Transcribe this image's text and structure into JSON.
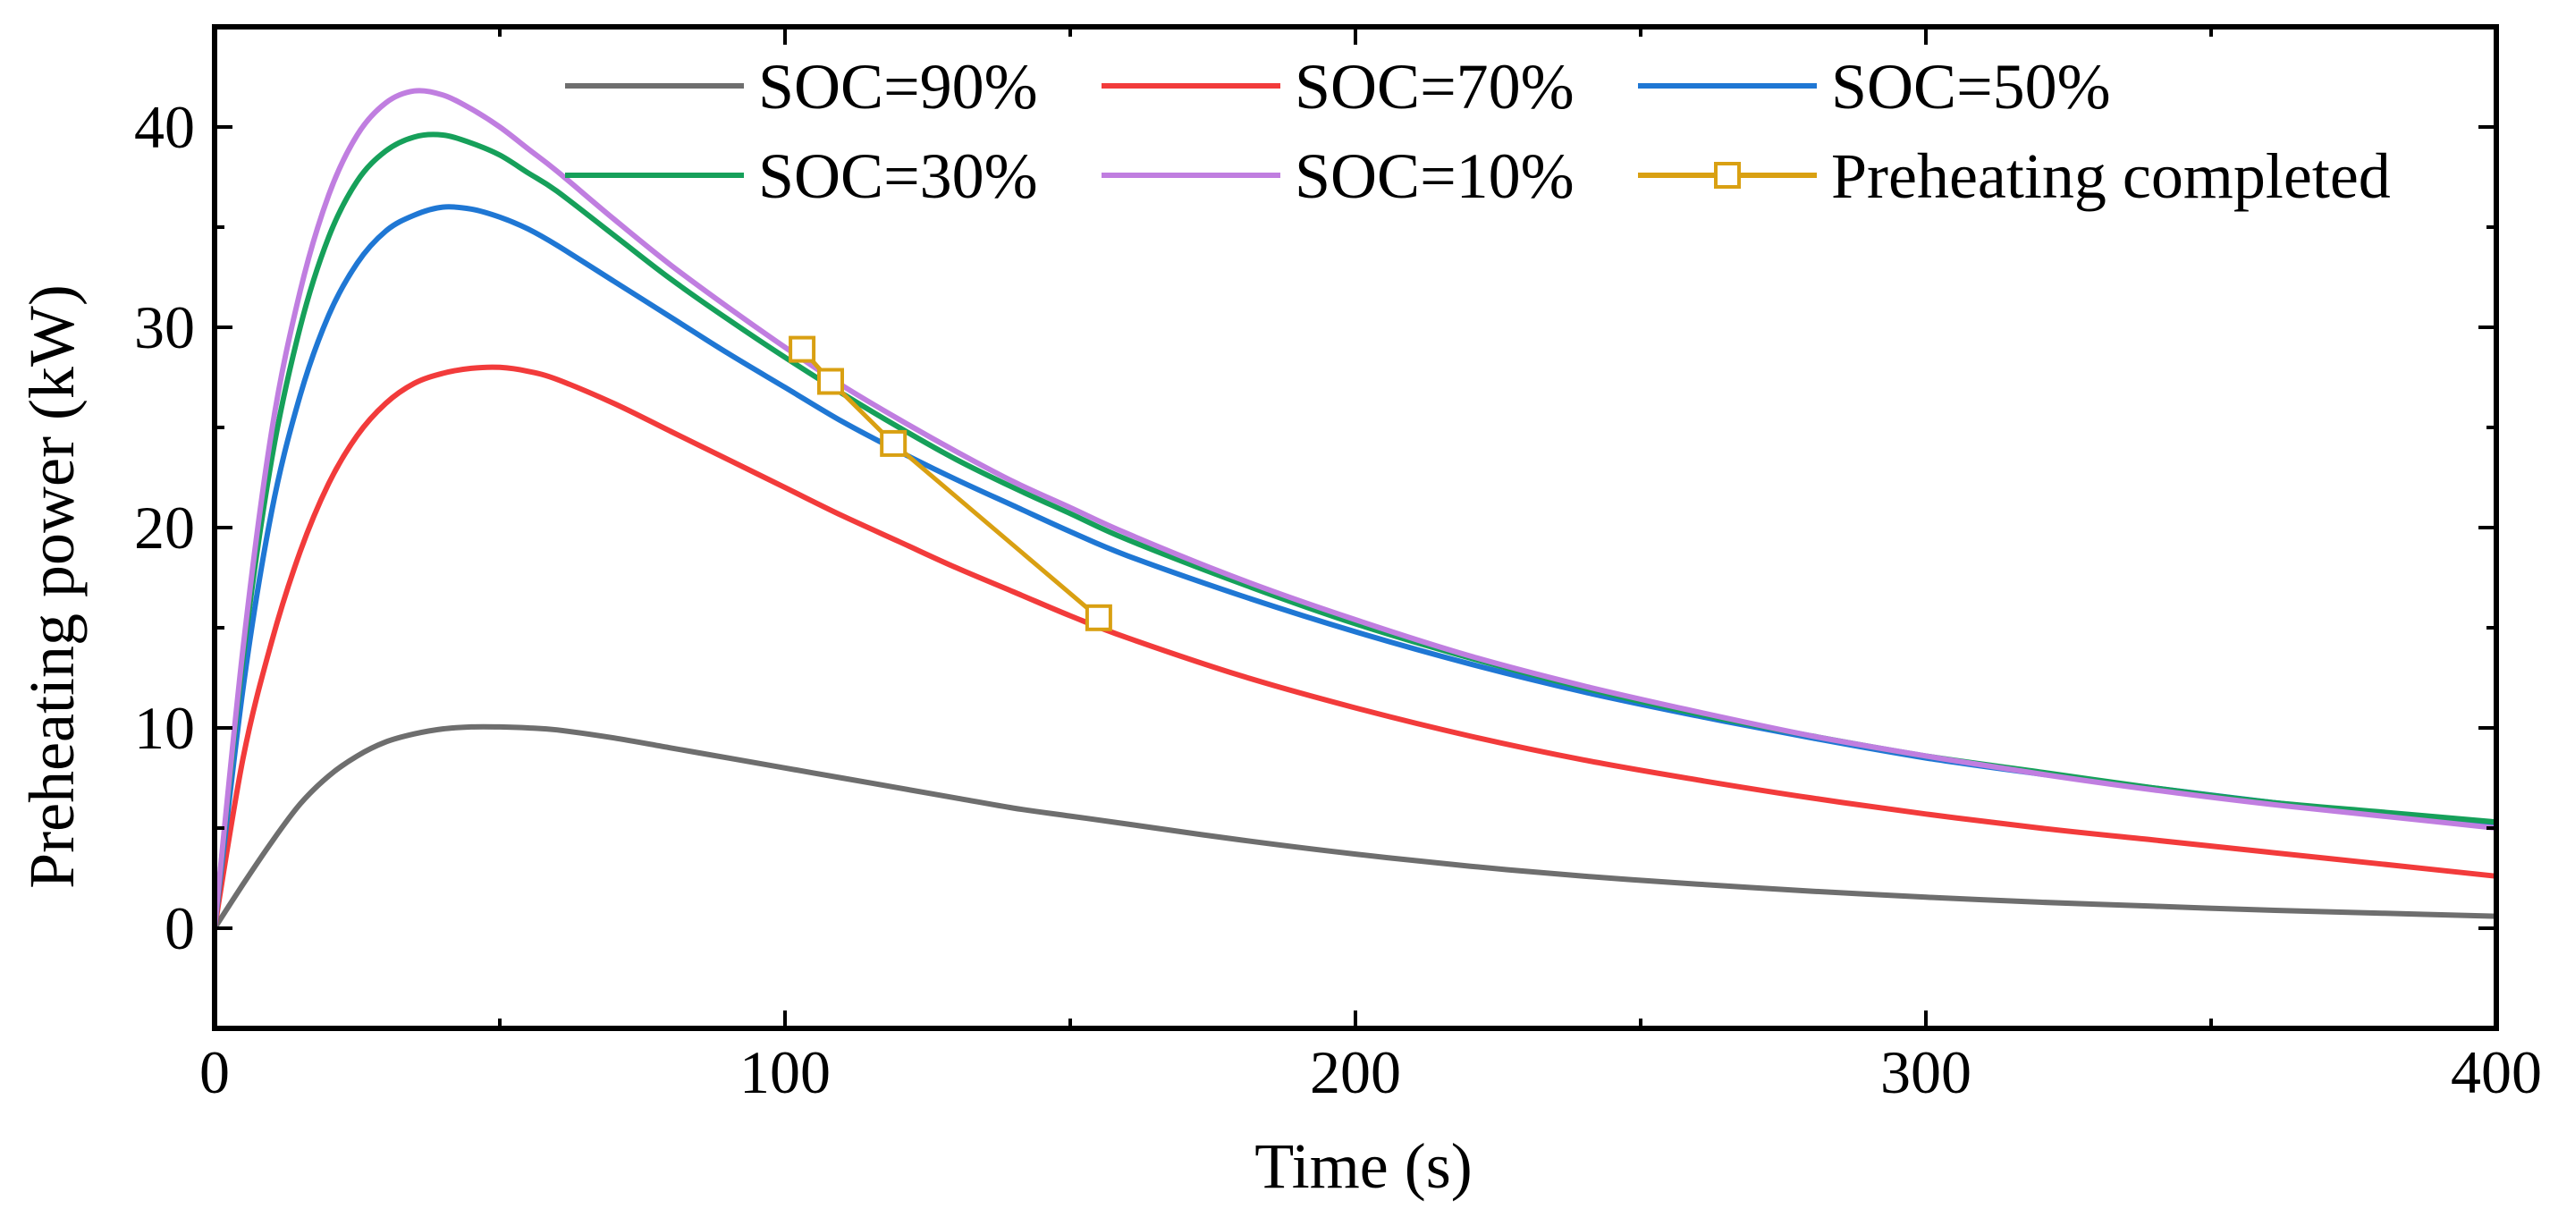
{
  "chart_data": {
    "type": "line",
    "title": "",
    "xlabel": "Time (s)",
    "ylabel": "Preheating power (kW)",
    "xlim": [
      0,
      400
    ],
    "ylim": [
      -5,
      45
    ],
    "x_ticks": [
      0,
      100,
      200,
      300,
      400
    ],
    "x_tick_labels": [
      "0",
      "100",
      "200",
      "300",
      "400"
    ],
    "y_ticks": [
      0,
      10,
      20,
      30,
      40
    ],
    "y_tick_labels": [
      "0",
      "10",
      "20",
      "30",
      "40"
    ],
    "grid": false,
    "legend_position": "top",
    "x": [
      0,
      5,
      10,
      15,
      20,
      25,
      30,
      35,
      40,
      45,
      50,
      55,
      60,
      70,
      80,
      90,
      100,
      110,
      120,
      130,
      140,
      150,
      160,
      180,
      200,
      220,
      240,
      260,
      280,
      300,
      320,
      340,
      360,
      380,
      400
    ],
    "series": [
      {
        "name": "SOC=90%",
        "color": "#6e6e6e",
        "values": [
          0,
          2.2,
          4.3,
          6.2,
          7.6,
          8.6,
          9.3,
          9.7,
          9.95,
          10.05,
          10.05,
          10.0,
          9.9,
          9.5,
          9.0,
          8.5,
          8.0,
          7.5,
          7.0,
          6.5,
          6.0,
          5.6,
          5.2,
          4.4,
          3.7,
          3.1,
          2.6,
          2.2,
          1.85,
          1.55,
          1.3,
          1.1,
          0.9,
          0.75,
          0.6
        ]
      },
      {
        "name": "SOC=70%",
        "color": "#f23b3b",
        "values": [
          0,
          8.5,
          14.3,
          18.8,
          22.2,
          24.6,
          26.2,
          27.2,
          27.7,
          27.95,
          28.0,
          27.8,
          27.4,
          26.2,
          24.8,
          23.4,
          22.0,
          20.6,
          19.3,
          18.0,
          16.8,
          15.6,
          14.5,
          12.6,
          11.0,
          9.6,
          8.4,
          7.4,
          6.5,
          5.7,
          5.0,
          4.4,
          3.8,
          3.2,
          2.6
        ]
      },
      {
        "name": "SOC=50%",
        "color": "#1f77d4",
        "values": [
          0,
          12.0,
          20.8,
          26.6,
          30.6,
          33.2,
          34.8,
          35.6,
          36.0,
          35.9,
          35.5,
          34.9,
          34.1,
          32.3,
          30.5,
          28.7,
          27.0,
          25.3,
          23.8,
          22.4,
          21.1,
          19.8,
          18.6,
          16.6,
          14.8,
          13.2,
          11.8,
          10.6,
          9.5,
          8.5,
          7.7,
          7.0,
          6.3,
          5.7,
          5.2
        ]
      },
      {
        "name": "SOC=30%",
        "color": "#16a05a",
        "values": [
          0,
          13.5,
          23.4,
          30.0,
          34.5,
          37.3,
          38.8,
          39.5,
          39.6,
          39.2,
          38.6,
          37.7,
          36.8,
          34.6,
          32.4,
          30.4,
          28.5,
          26.7,
          25.0,
          23.4,
          22.0,
          20.7,
          19.4,
          17.2,
          15.2,
          13.5,
          12.0,
          10.7,
          9.6,
          8.6,
          7.8,
          7.0,
          6.3,
          5.8,
          5.3
        ]
      },
      {
        "name": "SOC=10%",
        "color": "#c07ee0",
        "values": [
          0,
          14.0,
          24.8,
          31.8,
          36.6,
          39.6,
          41.2,
          41.8,
          41.6,
          40.9,
          40.0,
          38.9,
          37.8,
          35.4,
          33.1,
          31.0,
          29.0,
          27.1,
          25.4,
          23.8,
          22.3,
          21.0,
          19.7,
          17.4,
          15.4,
          13.6,
          12.1,
          10.8,
          9.6,
          8.6,
          7.7,
          6.9,
          6.2,
          5.6,
          5.0
        ]
      }
    ],
    "markers_series": {
      "name": "Preheating completed",
      "color": "#d9a012",
      "marker": "square",
      "points": [
        {
          "x": 103,
          "y": 28.9
        },
        {
          "x": 108,
          "y": 27.3
        },
        {
          "x": 119,
          "y": 24.2
        },
        {
          "x": 155,
          "y": 15.5
        }
      ]
    },
    "legend": [
      {
        "label": "SOC=90%",
        "color": "#6e6e6e",
        "marker": "none"
      },
      {
        "label": "SOC=70%",
        "color": "#f23b3b",
        "marker": "none"
      },
      {
        "label": "SOC=50%",
        "color": "#1f77d4",
        "marker": "none"
      },
      {
        "label": "SOC=30%",
        "color": "#16a05a",
        "marker": "none"
      },
      {
        "label": "SOC=10%",
        "color": "#c07ee0",
        "marker": "none"
      },
      {
        "label": "Preheating completed",
        "color": "#d9a012",
        "marker": "square"
      }
    ]
  }
}
